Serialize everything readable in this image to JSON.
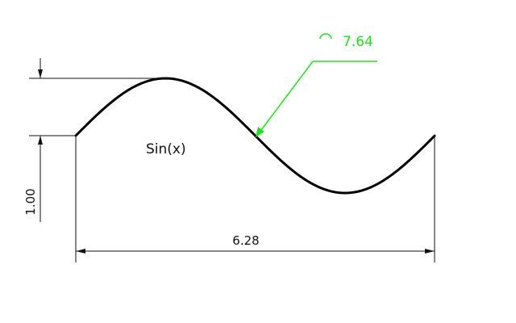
{
  "drawing": {
    "curve_label": "Sin(x)",
    "dimensions": {
      "horizontal_length": "6.28",
      "vertical_amplitude": "1.00",
      "arc_length": "7.64"
    },
    "colors": {
      "geometry": "#000000",
      "dimension_lines": "#111111",
      "arc_annotation": "#22dd22",
      "background": "#ffffff"
    },
    "symbols": {
      "arc_length_symbol": "arc-length-icon"
    }
  }
}
